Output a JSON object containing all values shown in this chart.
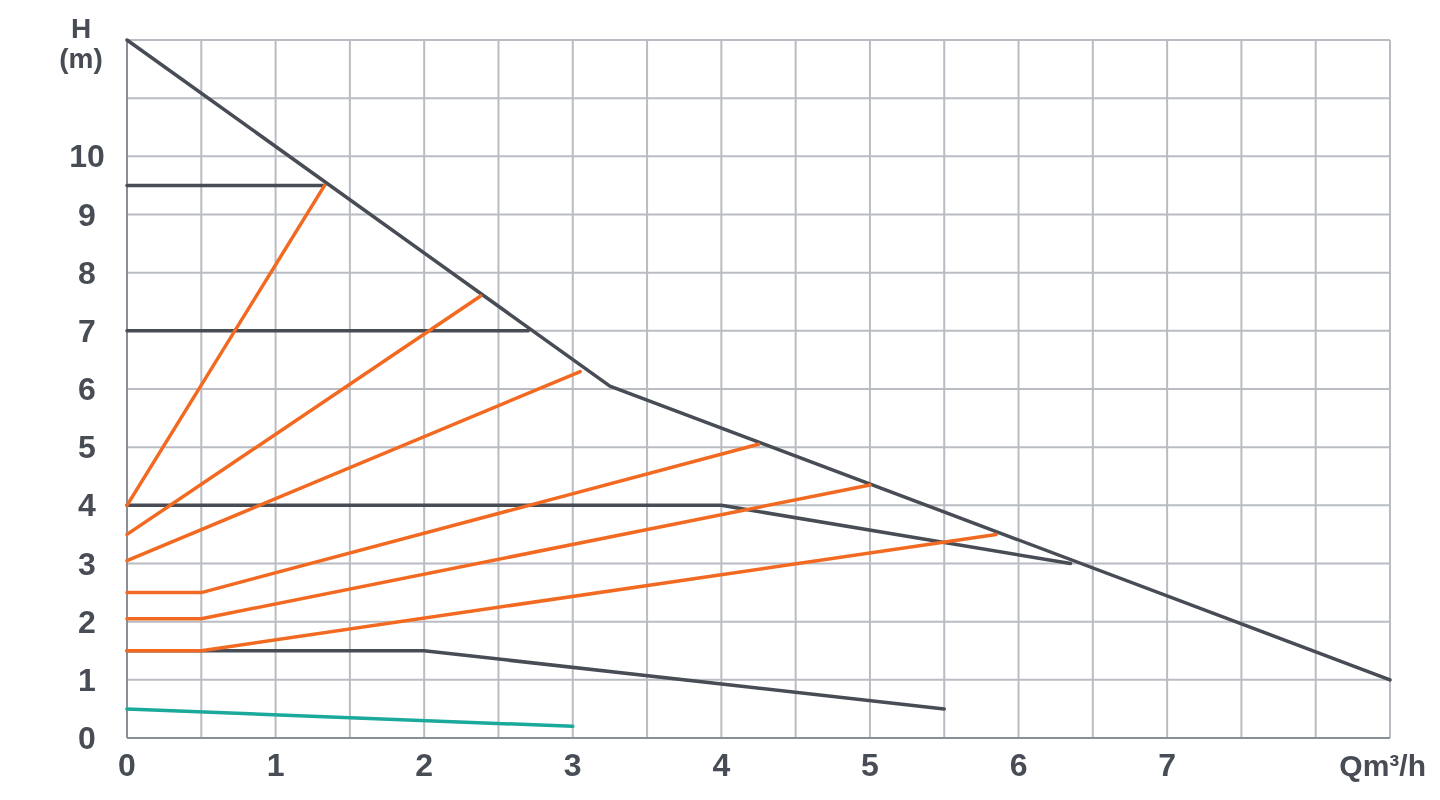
{
  "chart_data": {
    "type": "line",
    "xlabel": "Qm³/h",
    "ylabel": "H (m)",
    "xlim": [
      0,
      8.5
    ],
    "ylim": [
      0,
      12
    ],
    "xticks": [
      0,
      {
        "value": 0.5,
        "label": null
      },
      1,
      {
        "value": 1.5,
        "label": null
      },
      2,
      {
        "value": 2.5,
        "label": null
      },
      3,
      {
        "value": 3.5,
        "label": null
      },
      4,
      {
        "value": 4.5,
        "label": null
      },
      5,
      {
        "value": 5.5,
        "label": null
      },
      6,
      {
        "value": 6.5,
        "label": null
      },
      7,
      {
        "value": 7.5,
        "label": null
      },
      {
        "value": 8,
        "label": null
      },
      {
        "value": 8.5,
        "label": null
      }
    ],
    "yticks": [
      0,
      1,
      2,
      3,
      4,
      5,
      6,
      7,
      8,
      9,
      10,
      {
        "value": 11,
        "label": null
      },
      {
        "value": 12,
        "label": null
      }
    ],
    "grid": true,
    "marker": "none",
    "line_style": "solid",
    "series": [
      {
        "color": "#474c55",
        "x": [
          0,
          3.25,
          8.5
        ],
        "values": [
          12,
          6.05,
          1
        ]
      },
      {
        "color": "#474c55",
        "x": [
          0,
          1.33
        ],
        "values": [
          9.5,
          9.5
        ]
      },
      {
        "color": "#474c55",
        "x": [
          0,
          2.7
        ],
        "values": [
          7,
          7
        ]
      },
      {
        "color": "#474c55",
        "x": [
          0,
          4,
          6.35
        ],
        "values": [
          4,
          4,
          3
        ]
      },
      {
        "color": "#474c55",
        "x": [
          0,
          2,
          5.5
        ],
        "values": [
          1.5,
          1.5,
          0.5
        ]
      },
      {
        "color": "#1aa99a",
        "x": [
          0,
          3
        ],
        "values": [
          0.5,
          0.2
        ]
      },
      {
        "color": "#f26a21",
        "x": [
          0,
          1.33
        ],
        "values": [
          4,
          9.5
        ]
      },
      {
        "color": "#f26a21",
        "x": [
          0,
          2.38
        ],
        "values": [
          3.5,
          7.6
        ]
      },
      {
        "color": "#f26a21",
        "x": [
          0,
          3.05
        ],
        "values": [
          3.05,
          6.3
        ]
      },
      {
        "color": "#f26a21",
        "x": [
          0,
          0.5,
          4.25
        ],
        "values": [
          2.5,
          2.5,
          5.05
        ]
      },
      {
        "color": "#f26a21",
        "x": [
          0,
          0.5,
          5
        ],
        "values": [
          2.05,
          2.05,
          4.35
        ]
      },
      {
        "color": "#f26a21",
        "x": [
          0,
          0.5,
          5.85
        ],
        "values": [
          1.5,
          1.5,
          3.5
        ]
      }
    ]
  }
}
